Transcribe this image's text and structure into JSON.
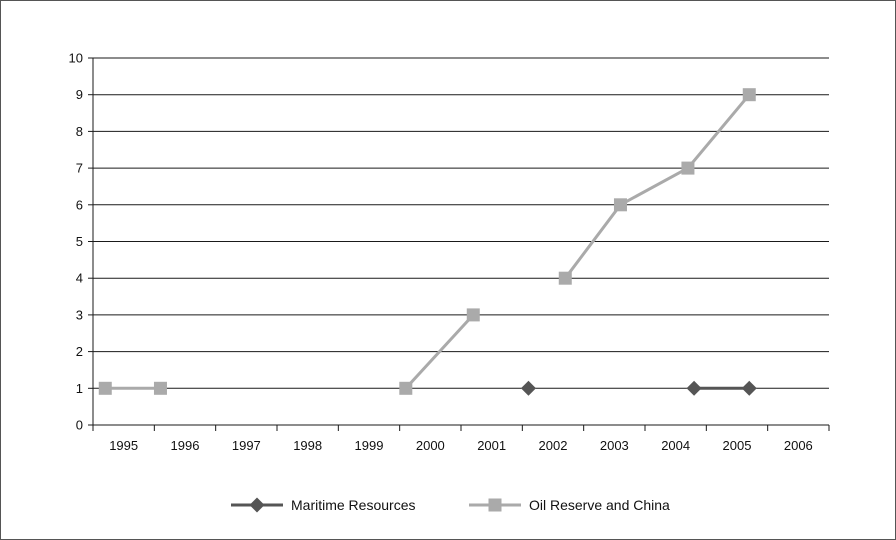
{
  "chart_data": {
    "type": "line",
    "title": "",
    "xlabel": "",
    "ylabel": "",
    "categories": [
      "1995",
      "1996",
      "1997",
      "1998",
      "1999",
      "2000",
      "2001",
      "2002",
      "2003",
      "2004",
      "2005",
      "2006"
    ],
    "ylim": [
      0,
      10
    ],
    "yticks": [
      0,
      1,
      2,
      3,
      4,
      5,
      6,
      7,
      8,
      9,
      10
    ],
    "grid": true,
    "legend_position": "bottom",
    "series": [
      {
        "name": "Maritime Resources",
        "color": "#555555",
        "marker": "diamond",
        "points": [
          {
            "x": 2001.6,
            "y": 1
          },
          {
            "x": 2004.3,
            "y": 1
          },
          {
            "x": 2005.2,
            "y": 1
          }
        ],
        "segments": [
          [
            1,
            2
          ]
        ]
      },
      {
        "name": "Oil Reserve and China",
        "color": "#aaaaaa",
        "marker": "square",
        "points": [
          {
            "x": 1994.7,
            "y": 1
          },
          {
            "x": 1995.6,
            "y": 1
          },
          {
            "x": 1999.6,
            "y": 1
          },
          {
            "x": 2000.7,
            "y": 3
          },
          {
            "x": 2002.2,
            "y": 4
          },
          {
            "x": 2003.1,
            "y": 6
          },
          {
            "x": 2004.2,
            "y": 7
          },
          {
            "x": 2005.2,
            "y": 9
          }
        ],
        "segments": [
          [
            0,
            1
          ],
          [
            2,
            3
          ],
          [
            4,
            5,
            6,
            7
          ]
        ]
      }
    ]
  }
}
